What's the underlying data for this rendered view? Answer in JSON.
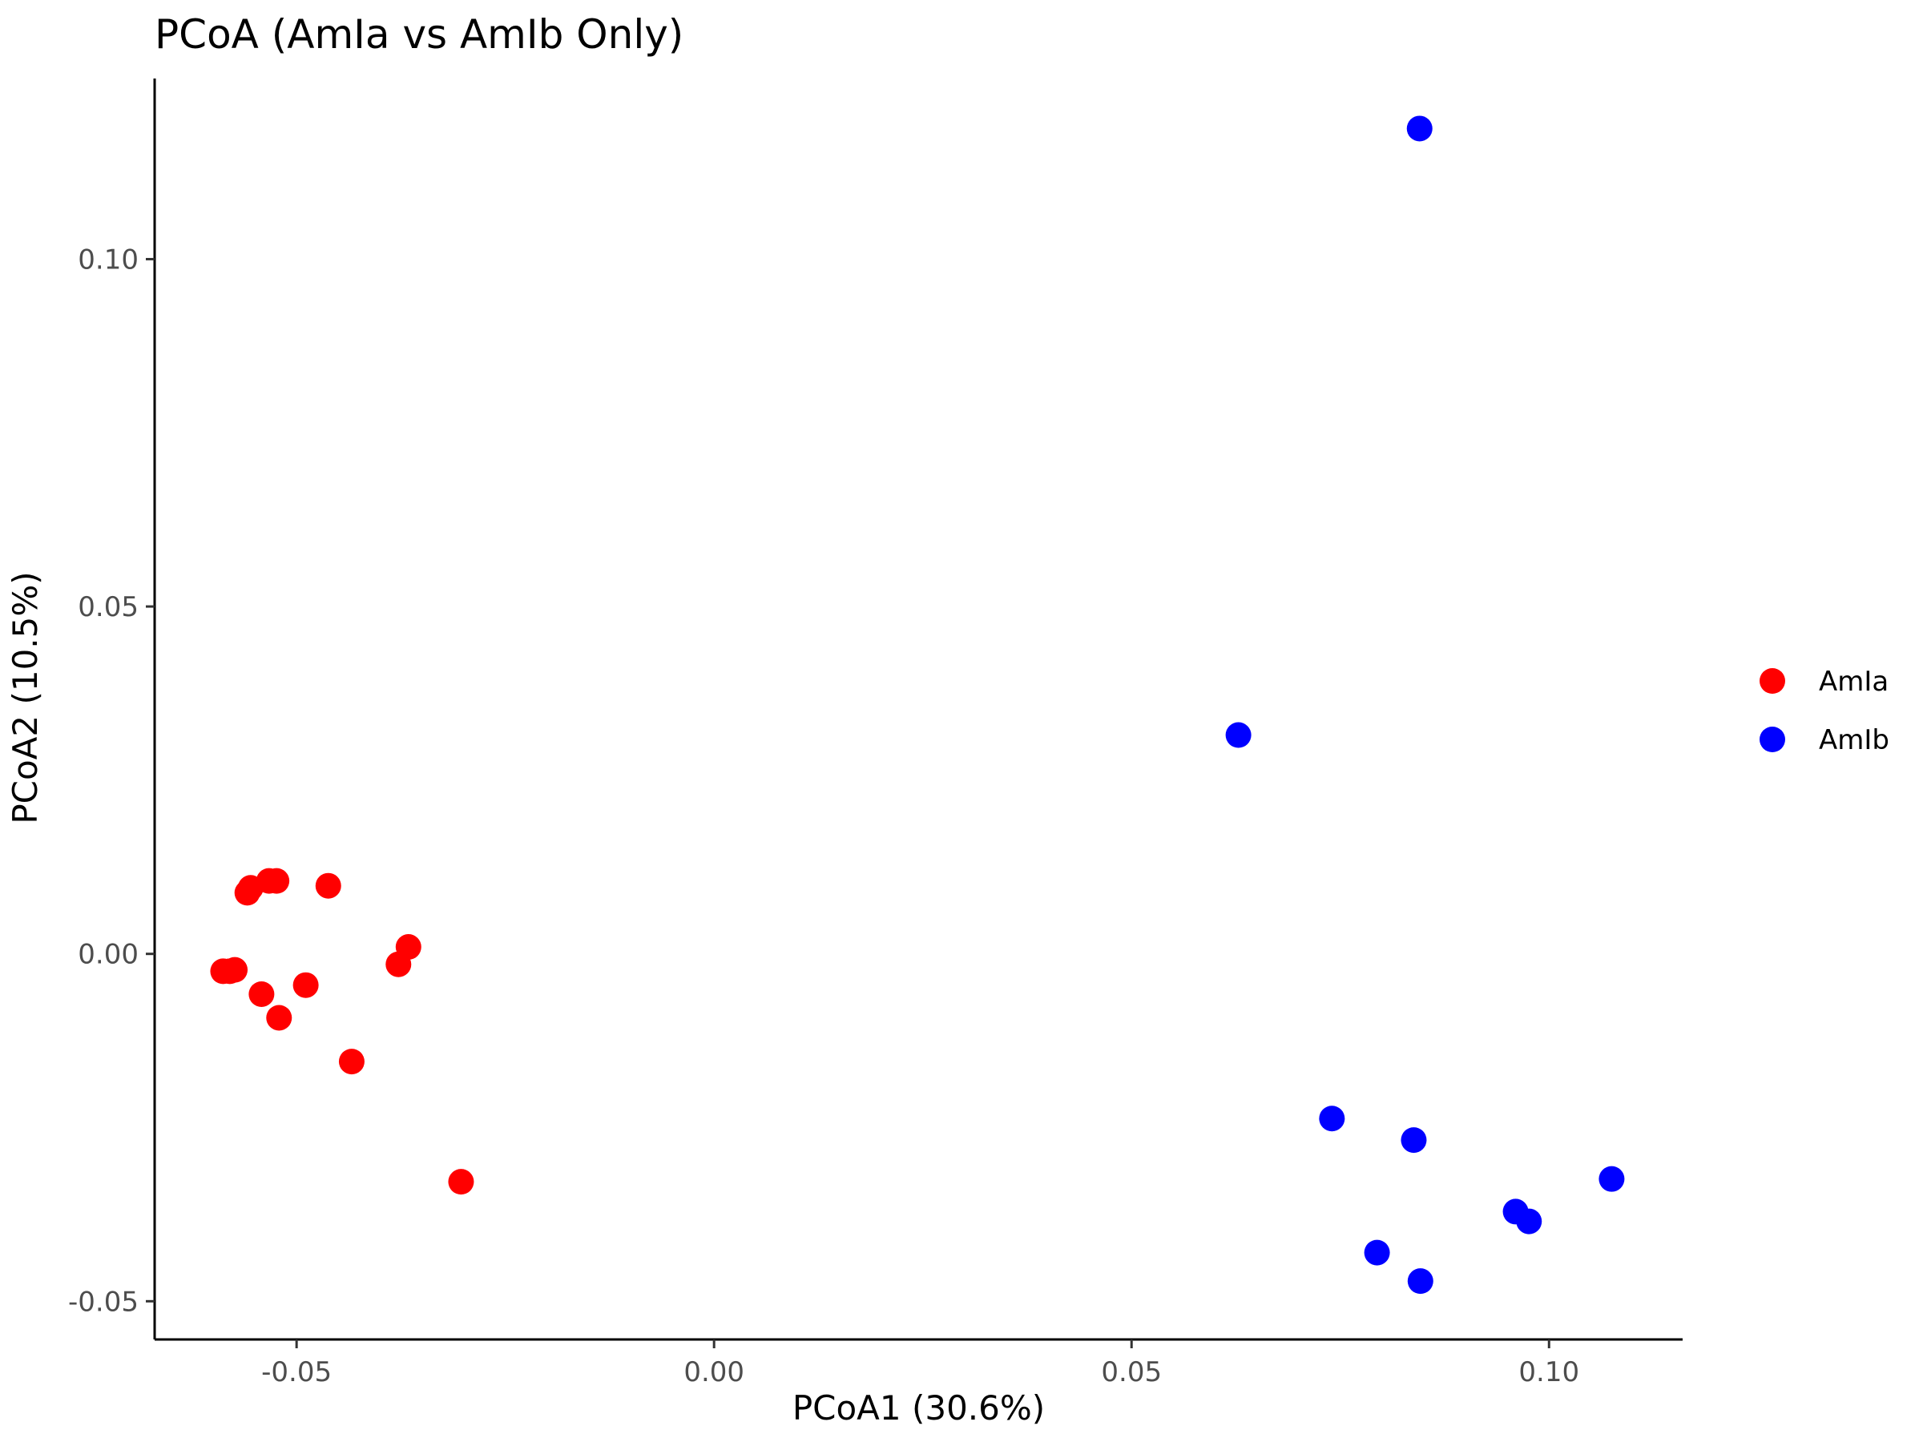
{
  "chart_data": {
    "type": "scatter",
    "title": "PCoA (AmIa vs AmIb Only)",
    "xlabel": "PCoA1 (30.6%)",
    "ylabel": "PCoA2 (10.5%)",
    "xlim": [
      -0.067,
      0.116
    ],
    "ylim": [
      -0.0555,
      0.126
    ],
    "x_ticks": [
      -0.05,
      0.0,
      0.05,
      0.1
    ],
    "x_tick_labels": [
      "-0.05",
      "0.00",
      "0.05",
      "0.10"
    ],
    "y_ticks": [
      -0.05,
      0.0,
      0.05,
      0.1
    ],
    "y_tick_labels": [
      "-0.05",
      "0.00",
      "0.05",
      "0.10"
    ],
    "grid": false,
    "legend_position": "right",
    "series": [
      {
        "name": "AmIa",
        "color": "#ff0000",
        "points": [
          [
            -0.0588,
            -0.0025
          ],
          [
            -0.058,
            -0.0025
          ],
          [
            -0.0574,
            -0.0023
          ],
          [
            -0.0555,
            0.0095
          ],
          [
            -0.0559,
            0.0088
          ],
          [
            -0.0533,
            0.0105
          ],
          [
            -0.0524,
            0.0105
          ],
          [
            -0.0462,
            0.0098
          ],
          [
            -0.0542,
            -0.0058
          ],
          [
            -0.0521,
            -0.0092
          ],
          [
            -0.0489,
            -0.0045
          ],
          [
            -0.0434,
            -0.0155
          ],
          [
            -0.0378,
            -0.0015
          ],
          [
            -0.0366,
            0.001
          ],
          [
            -0.0303,
            -0.0328
          ]
        ]
      },
      {
        "name": "AmIb",
        "color": "#0000ff",
        "points": [
          [
            0.0845,
            0.1188
          ],
          [
            0.0628,
            0.0315
          ],
          [
            0.074,
            -0.0237
          ],
          [
            0.0838,
            -0.0268
          ],
          [
            0.0794,
            -0.043
          ],
          [
            0.0846,
            -0.0471
          ],
          [
            0.096,
            -0.0371
          ],
          [
            0.0976,
            -0.0385
          ],
          [
            0.1075,
            -0.0324
          ]
        ]
      }
    ]
  }
}
